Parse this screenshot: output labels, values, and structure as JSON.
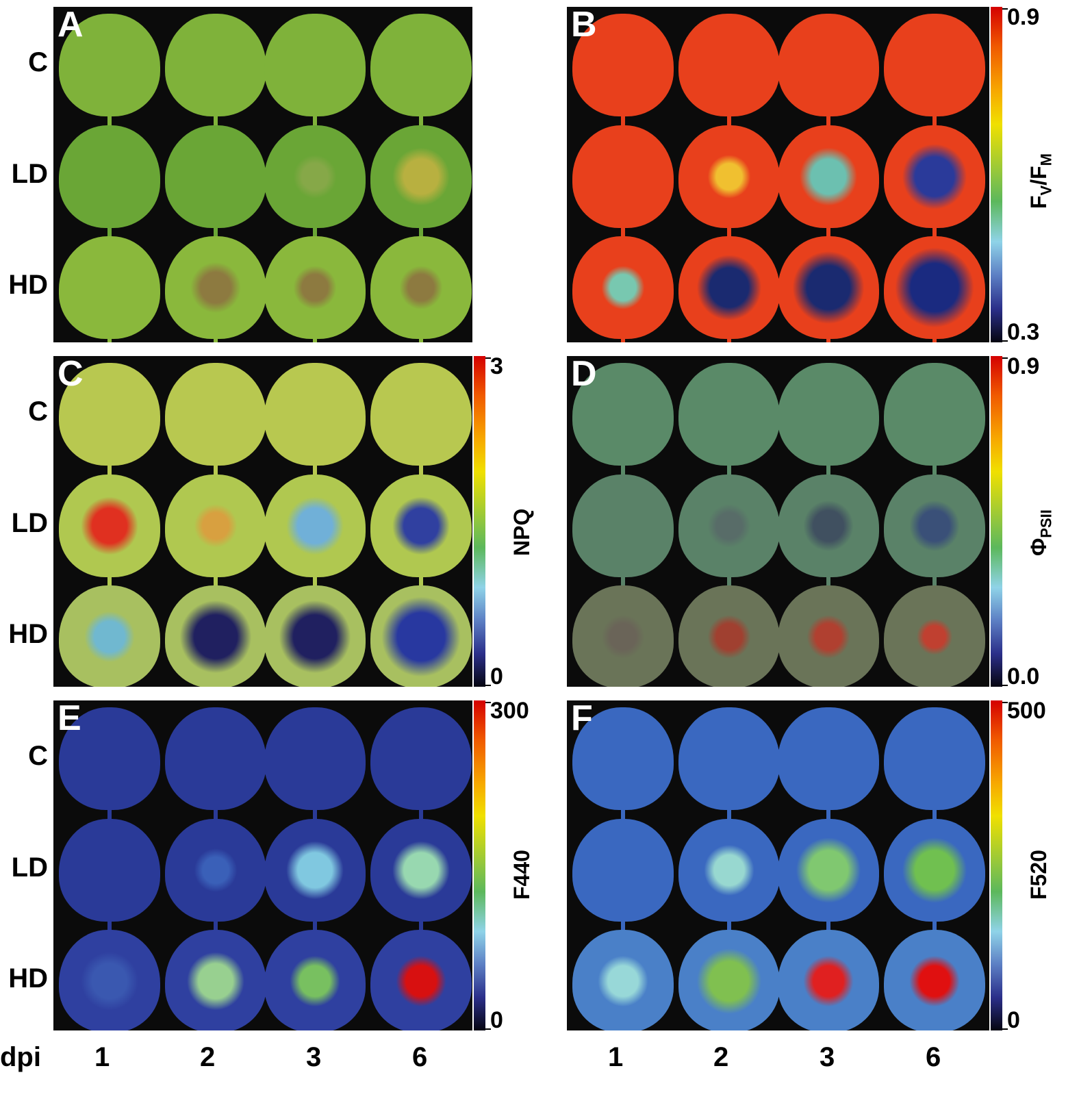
{
  "panels": [
    {
      "id": "A",
      "rows": [
        "C",
        "LD",
        "HD"
      ]
    },
    {
      "id": "B",
      "colorbar": {
        "label": "FV/FM",
        "label_main": "F",
        "sub1": "V",
        "sep": "/F",
        "sub2": "M",
        "max": "0.9",
        "min": "0.3"
      }
    },
    {
      "id": "C",
      "rows": [
        "C",
        "LD",
        "HD"
      ],
      "colorbar": {
        "label": "NPQ",
        "max": "3",
        "min": "0"
      }
    },
    {
      "id": "D",
      "colorbar": {
        "label": "ΦPSII",
        "label_main": "Φ",
        "sub1": "PSII",
        "max": "0.9",
        "min": "0.0"
      }
    },
    {
      "id": "E",
      "rows": [
        "C",
        "LD",
        "HD"
      ],
      "colorbar": {
        "label": "F440",
        "max": "300",
        "min": "0"
      }
    },
    {
      "id": "F",
      "colorbar": {
        "label": "F520",
        "max": "500",
        "min": "0"
      }
    }
  ],
  "x_axis": {
    "label": "dpi",
    "ticks": [
      "1",
      "2",
      "3",
      "6"
    ]
  }
}
